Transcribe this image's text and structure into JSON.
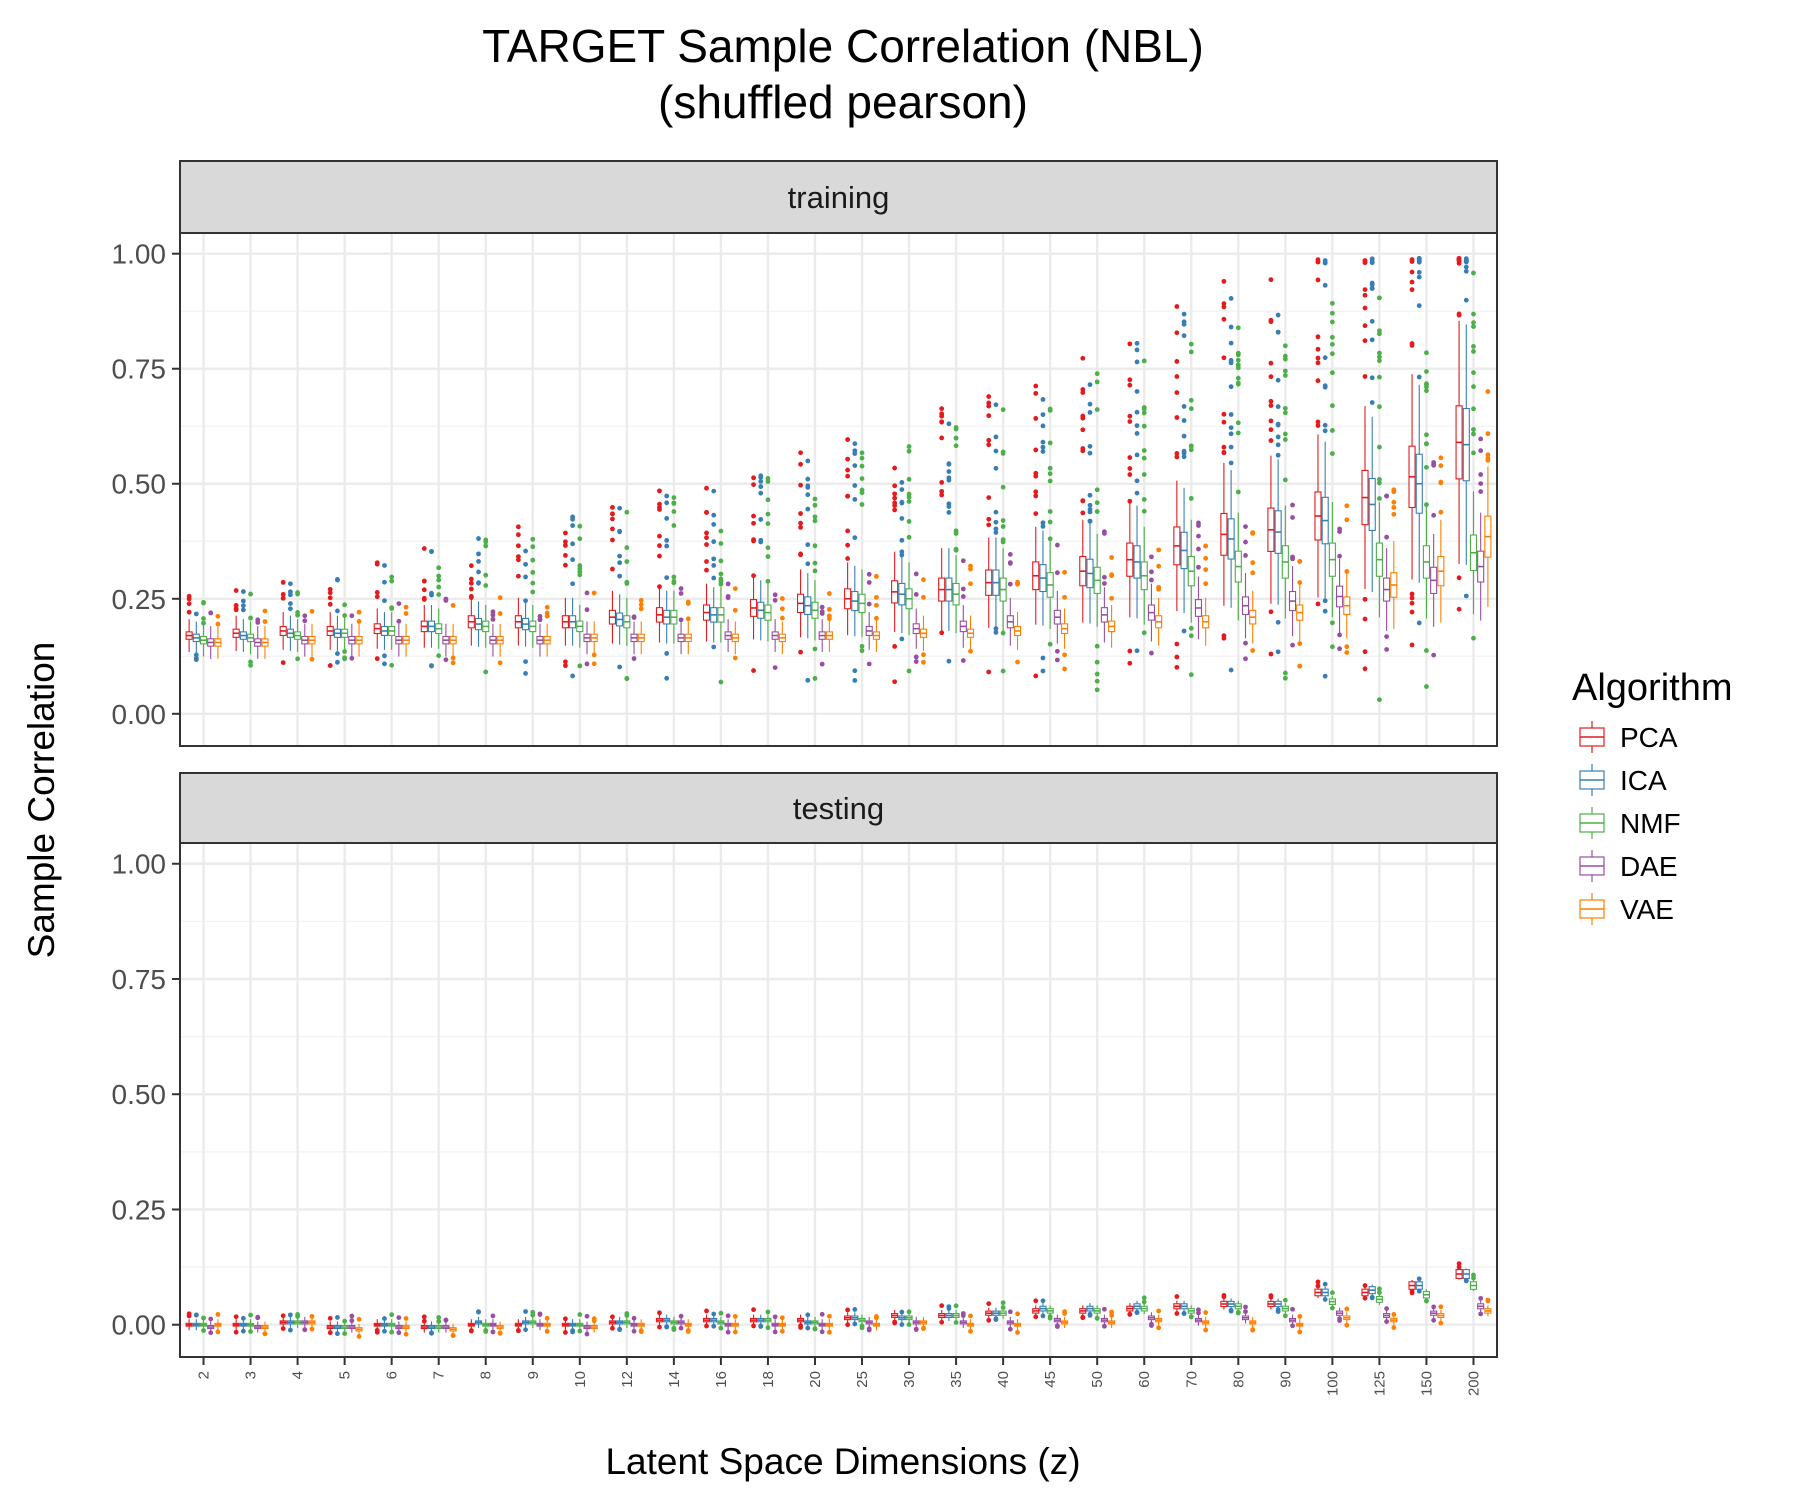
{
  "chart_data": {
    "type": "boxplot",
    "title": "TARGET Sample Correlation (NBL)",
    "subtitle": "(shuffled pearson)",
    "xlabel": "Latent Space Dimensions (z)",
    "ylabel": "Sample Correlation",
    "ylim": [
      -0.07,
      1.045
    ],
    "yticks": [
      "0.00",
      "0.25",
      "0.50",
      "0.75",
      "1.00"
    ],
    "categories": [
      "2",
      "3",
      "4",
      "5",
      "6",
      "7",
      "8",
      "9",
      "10",
      "12",
      "14",
      "16",
      "18",
      "20",
      "25",
      "30",
      "35",
      "40",
      "45",
      "50",
      "60",
      "70",
      "80",
      "90",
      "100",
      "125",
      "150",
      "200"
    ],
    "legend": {
      "title": "Algorithm",
      "position": "right"
    },
    "colors": {
      "PCA": "#e41a1c",
      "ICA": "#377eb8",
      "NMF": "#4daf4a",
      "DAE": "#984ea3",
      "VAE": "#ff7f00"
    },
    "panels": [
      {
        "name": "training",
        "series": [
          {
            "name": "PCA",
            "medians": [
              0.17,
              0.175,
              0.18,
              0.18,
              0.185,
              0.19,
              0.2,
              0.2,
              0.2,
              0.21,
              0.215,
              0.22,
              0.23,
              0.24,
              0.25,
              0.265,
              0.27,
              0.285,
              0.3,
              0.31,
              0.335,
              0.365,
              0.39,
              0.4,
              0.43,
              0.47,
              0.515,
              0.59
            ]
          },
          {
            "name": "ICA",
            "medians": [
              0.165,
              0.17,
              0.175,
              0.175,
              0.18,
              0.19,
              0.195,
              0.195,
              0.2,
              0.205,
              0.21,
              0.215,
              0.225,
              0.235,
              0.245,
              0.26,
              0.27,
              0.285,
              0.295,
              0.305,
              0.33,
              0.355,
              0.38,
              0.395,
              0.42,
              0.455,
              0.5,
              0.585
            ]
          },
          {
            "name": "NMF",
            "medians": [
              0.16,
              0.165,
              0.17,
              0.175,
              0.18,
              0.185,
              0.19,
              0.19,
              0.19,
              0.2,
              0.21,
              0.215,
              0.22,
              0.225,
              0.24,
              0.25,
              0.26,
              0.27,
              0.28,
              0.29,
              0.3,
              0.31,
              0.32,
              0.33,
              0.335,
              0.335,
              0.33,
              0.35
            ]
          },
          {
            "name": "DAE",
            "medians": [
              0.155,
              0.155,
              0.16,
              0.16,
              0.16,
              0.16,
              0.16,
              0.16,
              0.165,
              0.165,
              0.165,
              0.17,
              0.17,
              0.17,
              0.18,
              0.185,
              0.19,
              0.2,
              0.21,
              0.215,
              0.22,
              0.23,
              0.235,
              0.245,
              0.255,
              0.27,
              0.29,
              0.32
            ]
          },
          {
            "name": "VAE",
            "medians": [
              0.155,
              0.155,
              0.16,
              0.16,
              0.16,
              0.16,
              0.16,
              0.16,
              0.165,
              0.165,
              0.165,
              0.165,
              0.165,
              0.17,
              0.17,
              0.175,
              0.175,
              0.18,
              0.185,
              0.19,
              0.2,
              0.2,
              0.21,
              0.22,
              0.235,
              0.28,
              0.31,
              0.385
            ]
          }
        ]
      },
      {
        "name": "testing",
        "series": [
          {
            "name": "PCA",
            "medians": [
              0.0,
              0.0,
              0.005,
              -0.005,
              0.0,
              -0.005,
              0.0,
              0.0,
              0.0,
              0.005,
              0.01,
              0.01,
              0.01,
              0.01,
              0.015,
              0.02,
              0.02,
              0.025,
              0.03,
              0.03,
              0.035,
              0.04,
              0.045,
              0.045,
              0.07,
              0.07,
              0.085,
              0.11
            ]
          },
          {
            "name": "ICA",
            "medians": [
              0.0,
              0.0,
              0.005,
              -0.005,
              0.0,
              -0.005,
              0.005,
              0.005,
              0.0,
              0.005,
              0.01,
              0.01,
              0.01,
              0.005,
              0.015,
              0.015,
              0.02,
              0.025,
              0.035,
              0.035,
              0.04,
              0.04,
              0.045,
              0.045,
              0.07,
              0.075,
              0.085,
              0.11
            ]
          },
          {
            "name": "NMF",
            "medians": [
              0.0,
              0.0,
              0.005,
              -0.005,
              0.0,
              -0.005,
              0.0,
              0.005,
              0.0,
              0.005,
              0.005,
              0.005,
              0.01,
              0.005,
              0.01,
              0.015,
              0.02,
              0.025,
              0.03,
              0.03,
              0.035,
              0.03,
              0.04,
              0.035,
              0.05,
              0.055,
              0.065,
              0.085
            ]
          },
          {
            "name": "DAE",
            "medians": [
              -0.005,
              -0.005,
              0.005,
              -0.005,
              -0.005,
              -0.005,
              0.0,
              0.0,
              -0.005,
              0.0,
              0.005,
              0.0,
              0.0,
              0.0,
              0.005,
              0.005,
              0.005,
              0.005,
              0.01,
              0.01,
              0.015,
              0.01,
              0.015,
              0.01,
              0.025,
              0.02,
              0.025,
              0.04
            ]
          },
          {
            "name": "VAE",
            "medians": [
              0.0,
              -0.005,
              0.005,
              -0.01,
              -0.005,
              -0.01,
              -0.005,
              0.0,
              -0.005,
              0.0,
              0.0,
              0.0,
              0.0,
              0.0,
              0.0,
              0.005,
              0.0,
              0.0,
              0.005,
              0.005,
              0.01,
              0.005,
              0.005,
              0.0,
              0.015,
              0.01,
              0.02,
              0.03
            ]
          }
        ]
      }
    ]
  }
}
